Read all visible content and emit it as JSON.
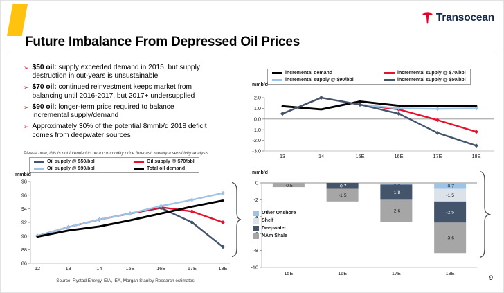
{
  "slide": {
    "title": "Future Imbalance From Depressed Oil Prices",
    "logo_text": "Transocean",
    "page_number": "9",
    "source_note": "Source: Rystad Energy, EIA, IEA, Morgan Stanley Research estimates",
    "disclaimer": "Please note, this is not intended to be a commodity price forecast, merely a sensitivity analysis."
  },
  "colors": {
    "accent_yellow": "#FFC20E",
    "logo_red": "#E4002B",
    "logo_navy": "#15294B",
    "bullet_red": "#E8112D"
  },
  "bullets": [
    {
      "lead": "$50 oil:",
      "text": " supply exceeded demand in 2015, but supply destruction in out-years is unsustainable"
    },
    {
      "lead": "$70 oil:",
      "text": " continued reinvestment keeps market from balancing until 2016-2017, but 2017+ undersupplied"
    },
    {
      "lead": "$90 oil:",
      "text": " longer-term price required to balance incremental supply/demand"
    },
    {
      "lead": "",
      "text": "Approximately 30% of the potential 8mmb/d 2018 deficit comes from deepwater sources"
    }
  ],
  "chart_data": [
    {
      "id": "incremental",
      "type": "line",
      "title": "",
      "ylabel": "mmb/d",
      "categories": [
        "13",
        "14",
        "15E",
        "16E",
        "17E",
        "18E"
      ],
      "ylim": [
        -3.0,
        2.0
      ],
      "yticks": [
        "2.0",
        "1.0",
        "0.0",
        "-1.0",
        "-2.0",
        "-3.0"
      ],
      "grid": false,
      "legend_position": "top",
      "series": [
        {
          "name": "incremental demand",
          "color": "#000000",
          "marker": false,
          "values": [
            1.2,
            0.9,
            1.65,
            1.25,
            1.2,
            1.2
          ]
        },
        {
          "name": "incremental supply @ $70/bbl",
          "color": "#E8112D",
          "marker": true,
          "values": [
            0.5,
            2.0,
            1.35,
            0.9,
            -0.1,
            -1.2
          ]
        },
        {
          "name": "incremental supply @ $90/bbl",
          "color": "#9DC3E6",
          "marker": true,
          "values": [
            0.5,
            2.0,
            1.35,
            1.0,
            0.95,
            1.0
          ]
        },
        {
          "name": "incremental supply @ $50/bbl",
          "color": "#44546A",
          "marker": true,
          "values": [
            0.5,
            2.0,
            1.35,
            0.5,
            -1.3,
            -2.5
          ]
        }
      ]
    },
    {
      "id": "supply-vs-demand",
      "type": "line",
      "title": "",
      "ylabel": "mmb/d",
      "categories": [
        "12",
        "13",
        "14",
        "15E",
        "16E",
        "17E",
        "18E"
      ],
      "ylim": [
        86,
        98
      ],
      "yticks": [
        "98",
        "96",
        "94",
        "92",
        "90",
        "88",
        "86"
      ],
      "grid": false,
      "legend_position": "top",
      "series": [
        {
          "name": "Oil supply @ $50/bbl",
          "color": "#44546A",
          "marker": true,
          "values": [
            90.0,
            91.3,
            92.4,
            93.3,
            94.1,
            92.0,
            88.4
          ]
        },
        {
          "name": "Oil supply @ $70/bbl",
          "color": "#E8112D",
          "marker": true,
          "values": [
            90.0,
            91.3,
            92.4,
            93.3,
            94.2,
            93.6,
            92.0
          ]
        },
        {
          "name": "Oil supply @ $90/bbl",
          "color": "#9DC3E6",
          "marker": true,
          "values": [
            90.0,
            91.3,
            92.4,
            93.3,
            94.4,
            95.3,
            96.3
          ]
        },
        {
          "name": "Total oil demand",
          "color": "#000000",
          "marker": false,
          "values": [
            89.9,
            90.8,
            91.4,
            92.3,
            93.3,
            94.3,
            95.2
          ]
        }
      ]
    },
    {
      "id": "deficit-by-source",
      "type": "stacked-bar",
      "title": "",
      "ylabel": "mmb/d",
      "categories": [
        "15E",
        "16E",
        "17E",
        "18E"
      ],
      "ylim": [
        -10,
        0
      ],
      "yticks": [
        "0",
        "-2",
        "-4",
        "-6",
        "-8",
        "-10"
      ],
      "grid": false,
      "legend_position": "inside-left",
      "series": [
        {
          "name": "Other Onshore",
          "color": "#9DC3E6",
          "label_color": "#1a1a1a",
          "values": [
            0,
            0,
            -0.2,
            -0.7
          ]
        },
        {
          "name": "Shelf",
          "color": "#DCE2EA",
          "label_color": "#1a1a1a",
          "values": [
            0,
            0,
            0,
            -1.5
          ]
        },
        {
          "name": "Deepwater",
          "color": "#44546A",
          "label_color": "#ffffff",
          "values": [
            0,
            -0.7,
            -1.8,
            -2.5
          ]
        },
        {
          "name": "NAm Shale",
          "color": "#A6A6A6",
          "label_color": "#1a1a1a",
          "values": [
            -0.5,
            -1.5,
            -2.6,
            -3.6
          ]
        }
      ]
    }
  ]
}
